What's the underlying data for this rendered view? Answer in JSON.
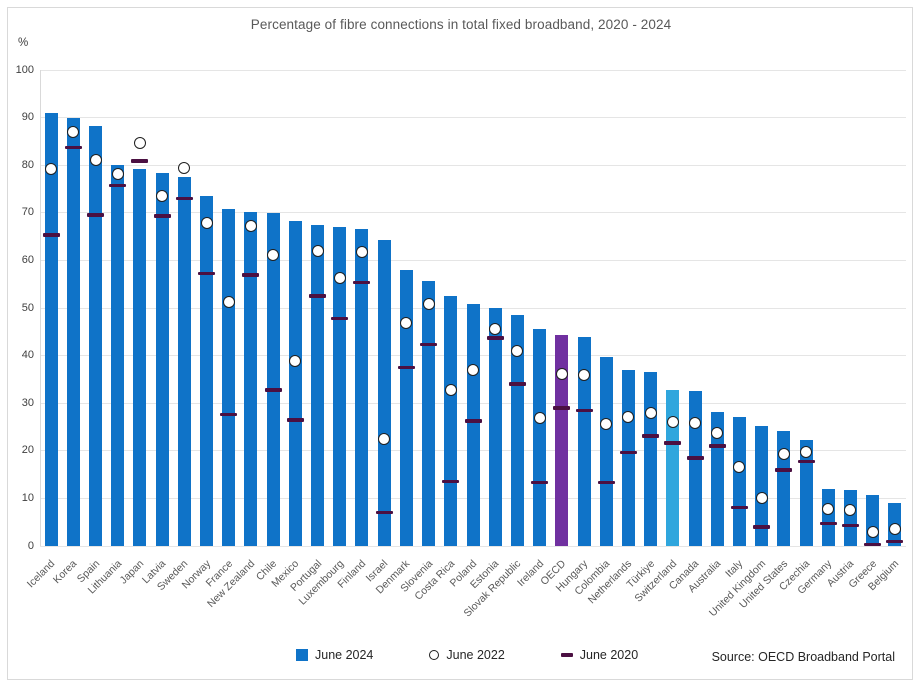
{
  "title": "Percentage of fibre connections in total fixed broadband, 2020 - 2024",
  "source": "Source: OECD Broadband Portal",
  "y_axis": {
    "unit_label": "%",
    "ticks": [
      0,
      10,
      20,
      30,
      40,
      50,
      60,
      70,
      80,
      90,
      100
    ]
  },
  "legend": {
    "june_2024": "June 2024",
    "june_2022": "June 2022",
    "june_2020": "June 2020"
  },
  "colors": {
    "bar_blue": "#0f73c8",
    "oecd_purple": "#7030a0",
    "switzerland_light_blue": "#2fa6dd",
    "dash_dark_purple": "#4b1042",
    "circle_stroke": "#1f1f1f",
    "gridline": "#e5e5e5",
    "text_gray": "#595959"
  },
  "chart_data": {
    "type": "bar",
    "title": "Percentage of fibre connections in total fixed broadband, 2020 - 2024",
    "ylabel": "%",
    "ylim": [
      0,
      100
    ],
    "grid": "horizontal",
    "legend_position": "bottom",
    "categories": [
      "Iceland",
      "Korea",
      "Spain",
      "Lithuania",
      "Japan",
      "Latvia",
      "Sweden",
      "Norway",
      "France",
      "New Zealand",
      "Chile",
      "Mexico",
      "Portugal",
      "Luxembourg",
      "Finland",
      "Israel",
      "Denmark",
      "Slovenia",
      "Costa Rica",
      "Poland",
      "Estonia",
      "Slovak Republic",
      "Ireland",
      "OECD",
      "Hungary",
      "Colombia",
      "Netherlands",
      "Türkiye",
      "Switzerland",
      "Canada",
      "Australia",
      "Italy",
      "United Kingdom",
      "United States",
      "Czechia",
      "Germany",
      "Austria",
      "Greece",
      "Belgium"
    ],
    "series": [
      {
        "name": "June 2024",
        "marker": "bar",
        "values": [
          91,
          90,
          88.2,
          80.1,
          79.1,
          78.4,
          77.6,
          73.5,
          70.7,
          70.2,
          69.9,
          68.3,
          67.4,
          67,
          66.7,
          64.2,
          58,
          55.7,
          52.5,
          50.8,
          50,
          48.5,
          45.5,
          44.4,
          43.9,
          39.8,
          37,
          36.6,
          32.8,
          32.6,
          28.2,
          27.2,
          25.2,
          24.2,
          22.2,
          11.9,
          11.7,
          10.8,
          9
        ]
      },
      {
        "name": "June 2022",
        "marker": "circle",
        "values": [
          79.3,
          87,
          81,
          78.2,
          84.6,
          73.5,
          79.4,
          67.8,
          51.3,
          67.3,
          61.2,
          38.8,
          61.9,
          56.2,
          61.7,
          22.5,
          46.8,
          50.9,
          32.7,
          37,
          45.6,
          41,
          26.8,
          36.1,
          36,
          25.7,
          27.2,
          27.9,
          26.1,
          25.9,
          23.7,
          16.6,
          10.1,
          19.4,
          19.8,
          7.8,
          7.5,
          3,
          3.6
        ]
      },
      {
        "name": "June 2020",
        "marker": "dash",
        "values": [
          65.3,
          83.7,
          69.5,
          75.7,
          80.9,
          69.3,
          73,
          57.2,
          27.6,
          56.9,
          32.8,
          26.5,
          52.5,
          47.8,
          55.3,
          7,
          37.5,
          42.3,
          13.6,
          26.3,
          43.7,
          34,
          13.3,
          29,
          28.5,
          13.3,
          19.6,
          23.1,
          21.6,
          18.5,
          21,
          8.1,
          4,
          16,
          17.8,
          4.7,
          4.3,
          0.3,
          1
        ]
      }
    ],
    "highlighted_categories": {
      "OECD": "#7030a0",
      "Switzerland": "#2fa6dd"
    }
  }
}
